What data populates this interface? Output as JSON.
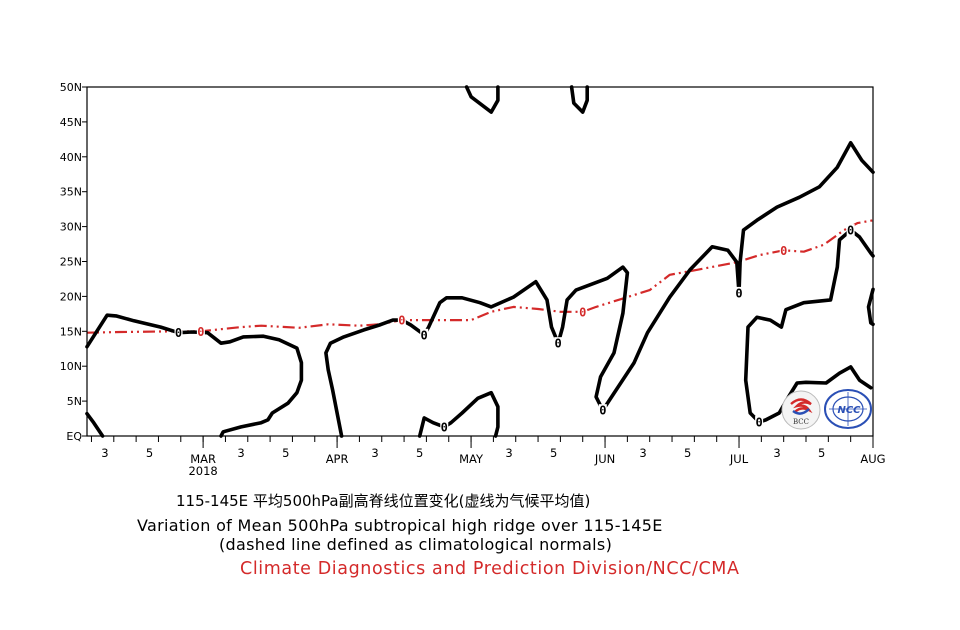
{
  "chart_data": {
    "type": "line",
    "x_unit": "pentad of year",
    "xlim": [
      7.8,
      43.0
    ],
    "ylim": [
      0,
      50
    ],
    "y_ticks": [
      {
        "value": 0,
        "label": "EQ"
      },
      {
        "value": 5,
        "label": "5N"
      },
      {
        "value": 10,
        "label": "10N"
      },
      {
        "value": 15,
        "label": "15N"
      },
      {
        "value": 20,
        "label": "20N"
      },
      {
        "value": 25,
        "label": "25N"
      },
      {
        "value": 30,
        "label": "30N"
      },
      {
        "value": 35,
        "label": "35N"
      },
      {
        "value": 40,
        "label": "40N"
      },
      {
        "value": 45,
        "label": "45N"
      },
      {
        "value": 50,
        "label": "50N"
      }
    ],
    "x_ticks": [
      {
        "x": 8.6,
        "label": "3"
      },
      {
        "x": 10.6,
        "label": "5"
      },
      {
        "x": 13,
        "label": "MAR",
        "sub": "2018"
      },
      {
        "x": 14.7,
        "label": "3"
      },
      {
        "x": 16.7,
        "label": "5"
      },
      {
        "x": 19,
        "label": "APR"
      },
      {
        "x": 20.7,
        "label": "3"
      },
      {
        "x": 22.7,
        "label": "5"
      },
      {
        "x": 25,
        "label": "MAY"
      },
      {
        "x": 26.7,
        "label": "3"
      },
      {
        "x": 28.7,
        "label": "5"
      },
      {
        "x": 31,
        "label": "JUN"
      },
      {
        "x": 32.7,
        "label": "3"
      },
      {
        "x": 34.7,
        "label": "5"
      },
      {
        "x": 37,
        "label": "JUL"
      },
      {
        "x": 38.7,
        "label": "3"
      },
      {
        "x": 40.7,
        "label": "5"
      },
      {
        "x": 43,
        "label": "AUG"
      }
    ],
    "grid": false,
    "observed_contours_color": "#000000",
    "climatology_color": "#d42a2a",
    "observed_contours": [
      [
        [
          7.8,
          12.8
        ],
        [
          8.7,
          17.3
        ],
        [
          9.1,
          17.2
        ],
        [
          9.9,
          16.5
        ],
        [
          11.1,
          15.6
        ],
        [
          11.9,
          14.8
        ],
        [
          12.5,
          14.9
        ],
        [
          13.2,
          14.8
        ],
        [
          13.8,
          13.3
        ],
        [
          14.2,
          13.5
        ],
        [
          14.8,
          14.2
        ],
        [
          15.7,
          14.3
        ],
        [
          16.4,
          13.8
        ],
        [
          17.2,
          12.6
        ],
        [
          17.4,
          10.5
        ],
        [
          17.4,
          8.0
        ],
        [
          17.2,
          6.2
        ],
        [
          16.8,
          4.7
        ],
        [
          16.1,
          3.3
        ],
        [
          15.9,
          2.3
        ],
        [
          15.6,
          1.9
        ],
        [
          14.7,
          1.3
        ],
        [
          13.9,
          0.6
        ],
        [
          13.8,
          0
        ]
      ],
      [
        [
          7.8,
          3.2
        ],
        [
          8.1,
          1.9
        ],
        [
          8.5,
          0
        ]
      ],
      [
        [
          19.2,
          0
        ],
        [
          19.0,
          3.3
        ],
        [
          18.8,
          6.6
        ],
        [
          18.6,
          9.5
        ],
        [
          18.5,
          11.9
        ],
        [
          18.7,
          13.3
        ],
        [
          19.3,
          14.2
        ],
        [
          20.2,
          15.2
        ],
        [
          20.9,
          15.9
        ],
        [
          21.5,
          16.6
        ],
        [
          21.9,
          16.6
        ],
        [
          22.3,
          15.9
        ],
        [
          22.9,
          14.5
        ],
        [
          23.1,
          15.6
        ],
        [
          23.6,
          19.1
        ],
        [
          23.9,
          19.8
        ],
        [
          24.6,
          19.8
        ],
        [
          25.4,
          19.1
        ],
        [
          25.9,
          18.5
        ],
        [
          26.9,
          19.9
        ],
        [
          27.9,
          22.1
        ],
        [
          28.4,
          19.5
        ],
        [
          28.6,
          15.6
        ],
        [
          28.9,
          13.3
        ],
        [
          29.1,
          15.6
        ],
        [
          29.3,
          19.5
        ],
        [
          29.7,
          20.9
        ],
        [
          31.1,
          22.6
        ],
        [
          31.8,
          24.2
        ],
        [
          32.0,
          23.4
        ],
        [
          31.8,
          17.6
        ],
        [
          31.4,
          11.9
        ],
        [
          30.8,
          8.5
        ],
        [
          30.6,
          5.6
        ],
        [
          30.9,
          3.7
        ],
        [
          31.5,
          6.6
        ],
        [
          32.3,
          10.5
        ],
        [
          32.9,
          14.8
        ],
        [
          33.9,
          19.9
        ],
        [
          34.8,
          23.8
        ],
        [
          35.8,
          27.1
        ],
        [
          36.5,
          26.6
        ],
        [
          36.9,
          24.9
        ],
        [
          37.0,
          20.5
        ],
        [
          37.05,
          24.9
        ],
        [
          37.2,
          29.5
        ],
        [
          37.8,
          30.9
        ],
        [
          38.7,
          32.8
        ],
        [
          39.7,
          34.2
        ],
        [
          40.6,
          35.7
        ],
        [
          41.4,
          38.5
        ],
        [
          42.0,
          42.0
        ],
        [
          42.5,
          39.5
        ],
        [
          43.0,
          37.8
        ]
      ],
      [
        [
          24.8,
          50
        ],
        [
          25.0,
          48.6
        ],
        [
          25.9,
          46.4
        ],
        [
          26.2,
          48.1
        ],
        [
          26.2,
          50
        ]
      ],
      [
        [
          29.5,
          50
        ],
        [
          29.6,
          47.7
        ],
        [
          30.0,
          46.4
        ],
        [
          30.2,
          48.1
        ],
        [
          30.2,
          50
        ]
      ],
      [
        [
          22.7,
          0
        ],
        [
          22.9,
          2.6
        ],
        [
          23.3,
          1.9
        ],
        [
          23.8,
          1.3
        ],
        [
          24.1,
          1.9
        ],
        [
          24.6,
          3.3
        ],
        [
          25.3,
          5.4
        ],
        [
          25.9,
          6.2
        ],
        [
          26.2,
          4.2
        ],
        [
          26.2,
          1.3
        ],
        [
          26.1,
          0
        ]
      ],
      [
        [
          42.9,
          6.9
        ],
        [
          42.4,
          8.0
        ],
        [
          42.0,
          9.9
        ],
        [
          41.5,
          9.0
        ],
        [
          40.9,
          7.6
        ],
        [
          40.0,
          7.7
        ],
        [
          39.6,
          7.6
        ],
        [
          39.2,
          5.5
        ],
        [
          38.8,
          3.3
        ],
        [
          38.2,
          2.3
        ],
        [
          37.9,
          2.0
        ],
        [
          37.5,
          3.3
        ],
        [
          37.3,
          8.0
        ],
        [
          37.4,
          15.6
        ],
        [
          37.8,
          17.0
        ],
        [
          38.4,
          16.6
        ],
        [
          38.9,
          15.6
        ],
        [
          39.1,
          18.1
        ],
        [
          39.9,
          19.1
        ],
        [
          41.1,
          19.5
        ],
        [
          41.4,
          24.2
        ],
        [
          41.5,
          28.1
        ],
        [
          42.0,
          29.5
        ],
        [
          42.4,
          28.5
        ],
        [
          42.9,
          26.2
        ],
        [
          43.0,
          25.8
        ]
      ],
      [
        [
          43.0,
          21.0
        ],
        [
          42.8,
          18.5
        ],
        [
          42.9,
          16.2
        ],
        [
          43.0,
          16.0
        ]
      ]
    ],
    "climatology": [
      [
        7.8,
        14.8
      ],
      [
        9.3,
        14.9
      ],
      [
        11.9,
        15.0
      ],
      [
        12.9,
        15.0
      ],
      [
        14.7,
        15.6
      ],
      [
        15.6,
        15.8
      ],
      [
        17.3,
        15.5
      ],
      [
        18.6,
        16.0
      ],
      [
        20.0,
        15.8
      ],
      [
        20.9,
        16.0
      ],
      [
        21.9,
        16.6
      ],
      [
        23.2,
        16.6
      ],
      [
        25.0,
        16.6
      ],
      [
        25.9,
        17.8
      ],
      [
        26.9,
        18.5
      ],
      [
        28.0,
        18.2
      ],
      [
        29.0,
        17.8
      ],
      [
        30.0,
        17.8
      ],
      [
        30.6,
        18.5
      ],
      [
        32.0,
        19.9
      ],
      [
        33.0,
        20.9
      ],
      [
        33.9,
        23.1
      ],
      [
        35.1,
        23.8
      ],
      [
        36.9,
        24.9
      ],
      [
        37.9,
        25.9
      ],
      [
        39.0,
        26.6
      ],
      [
        39.9,
        26.4
      ],
      [
        40.8,
        27.4
      ],
      [
        41.7,
        29.5
      ],
      [
        42.3,
        30.5
      ],
      [
        43.0,
        30.9
      ]
    ],
    "contour_labels": [
      {
        "x": 11.9,
        "y": 14.8,
        "text": "0",
        "series": "observed"
      },
      {
        "x": 22.9,
        "y": 14.5,
        "text": "0",
        "series": "observed"
      },
      {
        "x": 23.8,
        "y": 1.3,
        "text": "0",
        "series": "observed"
      },
      {
        "x": 28.9,
        "y": 13.3,
        "text": "0",
        "series": "observed"
      },
      {
        "x": 30.9,
        "y": 3.7,
        "text": "0",
        "series": "observed"
      },
      {
        "x": 37.0,
        "y": 20.5,
        "text": "0",
        "series": "observed"
      },
      {
        "x": 37.9,
        "y": 2.0,
        "text": "0",
        "series": "observed"
      },
      {
        "x": 42.0,
        "y": 29.5,
        "text": "0",
        "series": "observed"
      },
      {
        "x": 12.9,
        "y": 15.0,
        "text": "0",
        "series": "climatology"
      },
      {
        "x": 21.9,
        "y": 16.6,
        "text": "0",
        "series": "climatology"
      },
      {
        "x": 30.0,
        "y": 17.8,
        "text": "0",
        "series": "climatology"
      },
      {
        "x": 39.0,
        "y": 26.6,
        "text": "0",
        "series": "climatology"
      }
    ],
    "title_cn": "115-145E 平均500hPa副高脊线位置变化(虚线为气候平均值)",
    "title": "Variation of Mean 500hPa subtropical high ridge over 115-145E",
    "subtitle": "(dashed line defined as climatological normals)",
    "credit": "Climate Diagnostics and Prediction Division/NCC/CMA",
    "logos": [
      "BCC",
      "NCC"
    ]
  }
}
